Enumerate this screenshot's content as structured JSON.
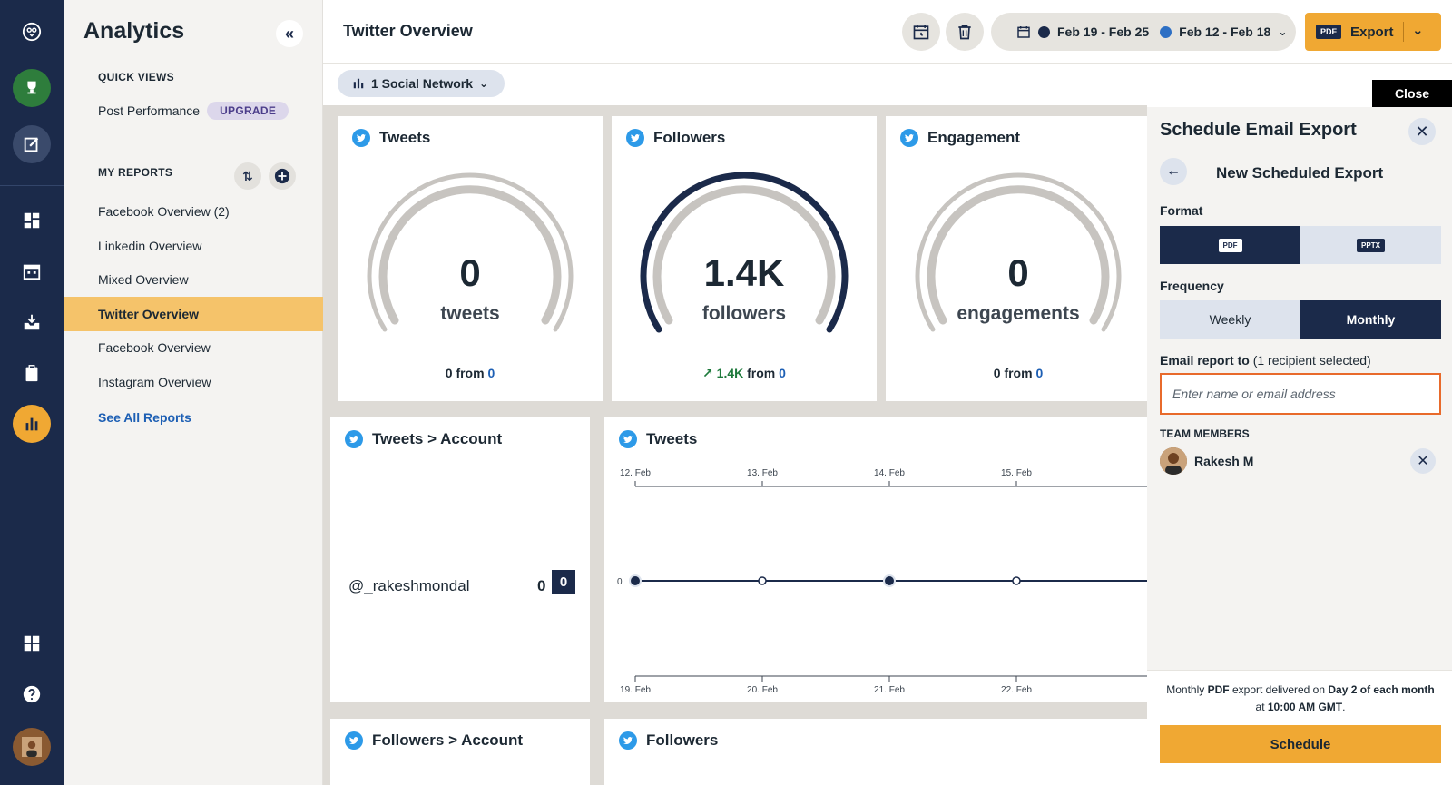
{
  "app": {
    "section_title": "Analytics"
  },
  "sidebar": {
    "quick_views_label": "QUICK VIEWS",
    "post_performance": "Post Performance",
    "upgrade_badge": "UPGRADE",
    "my_reports_label": "MY REPORTS",
    "reports": [
      "Facebook Overview (2)",
      "Linkedin Overview",
      "Mixed Overview",
      "Twitter Overview",
      "Facebook Overview",
      "Instagram Overview"
    ],
    "active_report": "Twitter Overview",
    "see_all": "See All Reports"
  },
  "header": {
    "title": "Twitter Overview",
    "date_range_a": "Feb 19 - Feb 25",
    "date_range_b": "Feb 12 - Feb 18",
    "export_chip": "PDF",
    "export_label": "Export"
  },
  "filter": {
    "label": "1 Social Network"
  },
  "cards": {
    "tweets": {
      "title": "Tweets",
      "value": "0",
      "unit": "tweets",
      "foot_value": "0",
      "foot_from": "from",
      "foot_prev": "0",
      "level": 0
    },
    "followers": {
      "title": "Followers",
      "value": "1.4K",
      "unit": "followers",
      "foot_value": "1.4K",
      "foot_from": "from",
      "foot_prev": "0",
      "level": 1
    },
    "engagement": {
      "title": "Engagement",
      "value": "0",
      "unit": "engagements",
      "foot_value": "0",
      "foot_from": "from",
      "foot_prev": "0",
      "level": 0
    },
    "tweets_account": {
      "title": "Tweets > Account",
      "handle": "@_rakeshmondal",
      "value": "0",
      "prev": "0"
    },
    "tweets_chart": {
      "title": "Tweets"
    },
    "followers_account": {
      "title": "Followers > Account"
    },
    "followers_chart": {
      "title": "Followers"
    }
  },
  "chart_data": {
    "type": "line",
    "title": "Tweets",
    "x_top": [
      "12. Feb",
      "13. Feb",
      "14. Feb",
      "15. Feb"
    ],
    "x_bottom": [
      "19. Feb",
      "20. Feb",
      "21. Feb",
      "22. Feb"
    ],
    "y_tick": "0",
    "series": [
      {
        "values": [
          0,
          0,
          0,
          0
        ]
      },
      {
        "values": [
          0,
          0,
          0,
          0
        ]
      }
    ]
  },
  "panel": {
    "close_tab": "Close",
    "title": "Schedule Email Export",
    "subtitle": "New Scheduled Export",
    "format_label": "Format",
    "format_pdf": "PDF",
    "format_pptx": "PPTX",
    "frequency_label": "Frequency",
    "freq_weekly": "Weekly",
    "freq_monthly": "Monthly",
    "email_label": "Email report to",
    "email_count": "(1 recipient selected)",
    "email_placeholder": "Enter name or email address",
    "team_label": "TEAM MEMBERS",
    "member_name": "Rakesh M",
    "note_a": "Monthly",
    "note_b": "PDF",
    "note_c": "export delivered on",
    "note_d": "Day 2 of each month",
    "note_e": "at",
    "note_f": "10:00 AM GMT",
    "note_g": ".",
    "schedule_button": "Schedule"
  },
  "colors": {
    "navy": "#1b2a4a",
    "accent_orange": "#f0a833",
    "active_row": "#f5c36a",
    "twitter_blue": "#2d9ae8",
    "range_a_dot": "#1b2a4a",
    "range_b_dot": "#2d6fc4"
  }
}
